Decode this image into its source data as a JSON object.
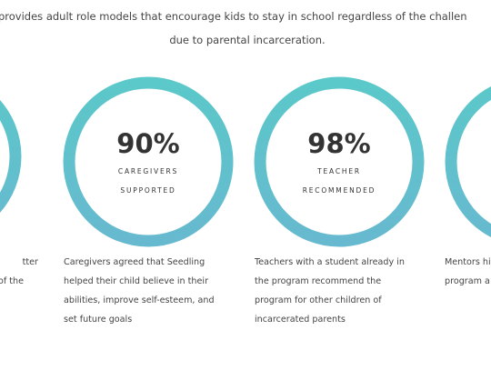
{
  "intro": {
    "lines": [
      "provides adult role models that encourage kids to stay in school regardless of the challen",
      "due to parental incarceration."
    ]
  },
  "cards": [
    {
      "description": [
        "tter",
        "of the"
      ]
    },
    {
      "stat": "90%",
      "label": [
        "CAREGIVERS",
        "SUPPORTED"
      ],
      "description": [
        "Caregivers agreed that Seedling",
        "helped their child believe in their",
        "abilities, improve self-esteem, and",
        "set future goals"
      ]
    },
    {
      "stat": "98%",
      "label": [
        "TEACHER",
        "RECOMMENDED"
      ],
      "description": [
        "Teachers with a student already in",
        "the program recommend the",
        "program for other children of",
        "incarcerated parents"
      ]
    },
    {
      "description": [
        "Mentors hi",
        "program a"
      ]
    }
  ]
}
